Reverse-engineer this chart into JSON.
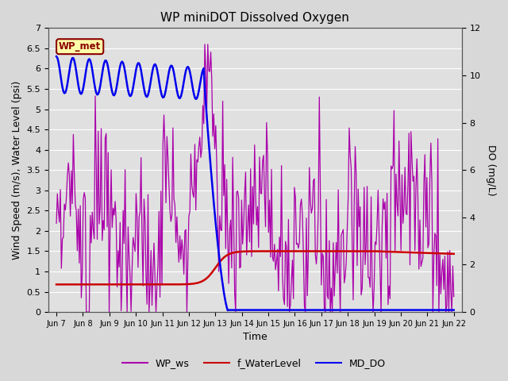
{
  "title": "WP miniDOT Dissolved Oxygen",
  "ylabel_left": "Wind Speed (m/s), Water Level (psi)",
  "ylabel_right": "DO (mg/L)",
  "xlabel": "Time",
  "ylim_left": [
    0.0,
    7.0
  ],
  "ylim_right": [
    0,
    12
  ],
  "yticks_left": [
    0.0,
    0.5,
    1.0,
    1.5,
    2.0,
    2.5,
    3.0,
    3.5,
    4.0,
    4.5,
    5.0,
    5.5,
    6.0,
    6.5,
    7.0
  ],
  "yticks_right": [
    0,
    2,
    4,
    6,
    8,
    10,
    12
  ],
  "x_tick_labels": [
    "Jun 7",
    "Jun 8",
    "Jun 9",
    "Jun 10",
    "Jun 11",
    "Jun 12",
    "Jun 13",
    "Jun 14",
    "Jun 15",
    "Jun 16",
    "Jun 17",
    "Jun 18",
    "Jun 19",
    "Jun 20",
    "Jun 21",
    "Jun 22"
  ],
  "fig_bg_color": "#d8d8d8",
  "plot_bg_color": "#e0e0e0",
  "grid_color": "#ffffff",
  "wp_met_label": "WP_met",
  "wp_met_fg": "#8B0000",
  "wp_met_bg": "#ffffaa",
  "wp_met_border": "#8B0000",
  "wp_ws_color": "#aa00aa",
  "f_waterlevel_color": "#cc0000",
  "md_do_color": "#0000ee",
  "legend_labels": [
    "WP_ws",
    "f_WaterLevel",
    "MD_DO"
  ],
  "legend_colors": [
    "#aa00aa",
    "#cc0000",
    "#0000ee"
  ],
  "title_fontsize": 11,
  "axis_fontsize": 9,
  "tick_fontsize": 8
}
